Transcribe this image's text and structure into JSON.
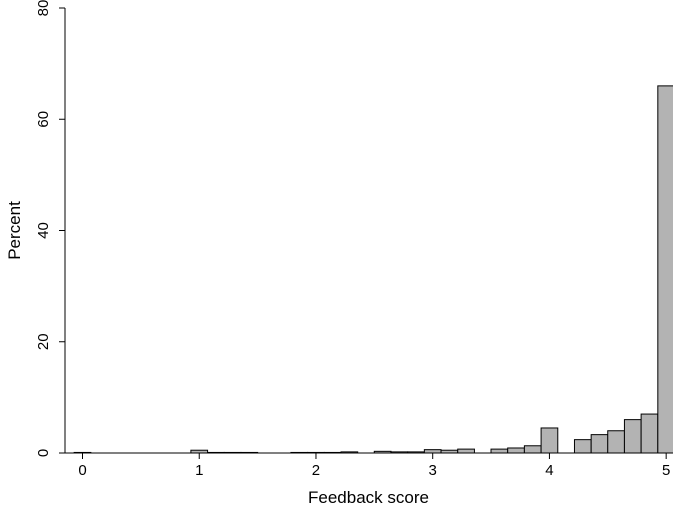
{
  "chart_data": {
    "type": "bar",
    "title": "",
    "xlabel": "Feedback score",
    "ylabel": "Percent",
    "xlim": [
      -0.15,
      5.05
    ],
    "ylim": [
      0,
      80
    ],
    "x_ticks": [
      0,
      1,
      2,
      3,
      4,
      5
    ],
    "y_ticks": [
      0,
      20,
      40,
      60,
      80
    ],
    "bin_width": 0.143,
    "grid": false,
    "bar_color": "#b3b3b3",
    "bins": [
      {
        "x": 0.0,
        "value": 0.1
      },
      {
        "x": 1.0,
        "value": 0.5
      },
      {
        "x": 1.143,
        "value": 0.1
      },
      {
        "x": 1.286,
        "value": 0.1
      },
      {
        "x": 1.429,
        "value": 0.1
      },
      {
        "x": 1.857,
        "value": 0.1
      },
      {
        "x": 2.0,
        "value": 0.1
      },
      {
        "x": 2.143,
        "value": 0.1
      },
      {
        "x": 2.286,
        "value": 0.2
      },
      {
        "x": 2.571,
        "value": 0.3
      },
      {
        "x": 2.714,
        "value": 0.2
      },
      {
        "x": 2.857,
        "value": 0.2
      },
      {
        "x": 3.0,
        "value": 0.6
      },
      {
        "x": 3.143,
        "value": 0.5
      },
      {
        "x": 3.286,
        "value": 0.7
      },
      {
        "x": 3.571,
        "value": 0.7
      },
      {
        "x": 3.714,
        "value": 0.9
      },
      {
        "x": 3.857,
        "value": 1.3
      },
      {
        "x": 4.0,
        "value": 4.5
      },
      {
        "x": 4.286,
        "value": 2.4
      },
      {
        "x": 4.429,
        "value": 3.3
      },
      {
        "x": 4.571,
        "value": 4.0
      },
      {
        "x": 4.714,
        "value": 6.0
      },
      {
        "x": 4.857,
        "value": 7.0
      },
      {
        "x": 5.0,
        "value": 66.0
      }
    ]
  }
}
